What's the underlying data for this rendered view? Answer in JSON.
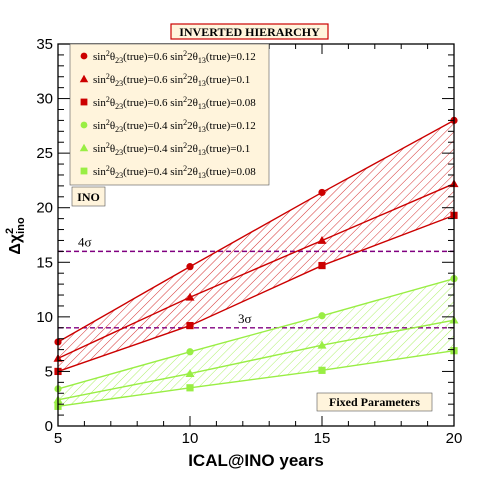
{
  "chart_data": {
    "type": "line",
    "title": "INVERTED HIERARCHY",
    "xlabel": "ICAL@INO years",
    "ylabel": "Δχ²_ino",
    "x": [
      5,
      10,
      15,
      20
    ],
    "xlim": [
      5,
      20
    ],
    "ylim": [
      0,
      35
    ],
    "xticks": [
      5,
      10,
      15,
      20
    ],
    "yticks": [
      0,
      5,
      10,
      15,
      20,
      25,
      30,
      35
    ],
    "grid": false,
    "legend_position": "top-left",
    "series": [
      {
        "name": "sin²θ23(true)=0.6   sin²2θ13(true)=0.12",
        "theta23": "0.6",
        "sin2theta13": "0.12",
        "marker": "circle",
        "color": "#cc0000",
        "values": [
          7.7,
          14.6,
          21.4,
          28.0
        ]
      },
      {
        "name": "sin²θ23(true)=0.6   sin²2θ13(true)=0.1",
        "theta23": "0.6",
        "sin2theta13": "0.1",
        "marker": "triangle",
        "color": "#cc0000",
        "values": [
          6.2,
          11.8,
          17.0,
          22.2
        ]
      },
      {
        "name": "sin²θ23(true)=0.6   sin²2θ13(true)=0.08",
        "theta23": "0.6",
        "sin2theta13": "0.08",
        "marker": "square",
        "color": "#cc0000",
        "values": [
          5.0,
          9.2,
          14.7,
          19.3
        ]
      },
      {
        "name": "sin²θ23(true)=0.4   sin²2θ13(true)=0.12",
        "theta23": "0.4",
        "sin2theta13": "0.12",
        "marker": "circle",
        "color": "#99ee44",
        "values": [
          3.4,
          6.8,
          10.1,
          13.5
        ]
      },
      {
        "name": "sin²θ23(true)=0.4   sin²2θ13(true)=0.1",
        "theta23": "0.4",
        "sin2theta13": "0.1",
        "marker": "triangle",
        "color": "#99ee44",
        "values": [
          2.4,
          4.8,
          7.4,
          9.7
        ]
      },
      {
        "name": "sin²θ23(true)=0.4   sin²2θ13(true)=0.08",
        "theta23": "0.4",
        "sin2theta13": "0.08",
        "marker": "square",
        "color": "#99ee44",
        "values": [
          1.8,
          3.5,
          5.1,
          6.9
        ]
      }
    ],
    "bands": [
      {
        "upper_series": 0,
        "lower_series": 2,
        "color": "#cc0000"
      },
      {
        "upper_series": 3,
        "lower_series": 5,
        "color": "#99ee44"
      }
    ],
    "reference_lines": [
      {
        "label": "4σ",
        "y": 16,
        "color": "#800080"
      },
      {
        "label": "3σ",
        "y": 9,
        "color": "#800080"
      }
    ],
    "annotations": {
      "ino_box": "INO",
      "fixed_box": "Fixed Parameters"
    }
  },
  "colors": {
    "red": "#cc0000",
    "green": "#99ee44",
    "purple": "#800080",
    "box_fill": "#fff4dc",
    "title_border": "#cc0000"
  }
}
